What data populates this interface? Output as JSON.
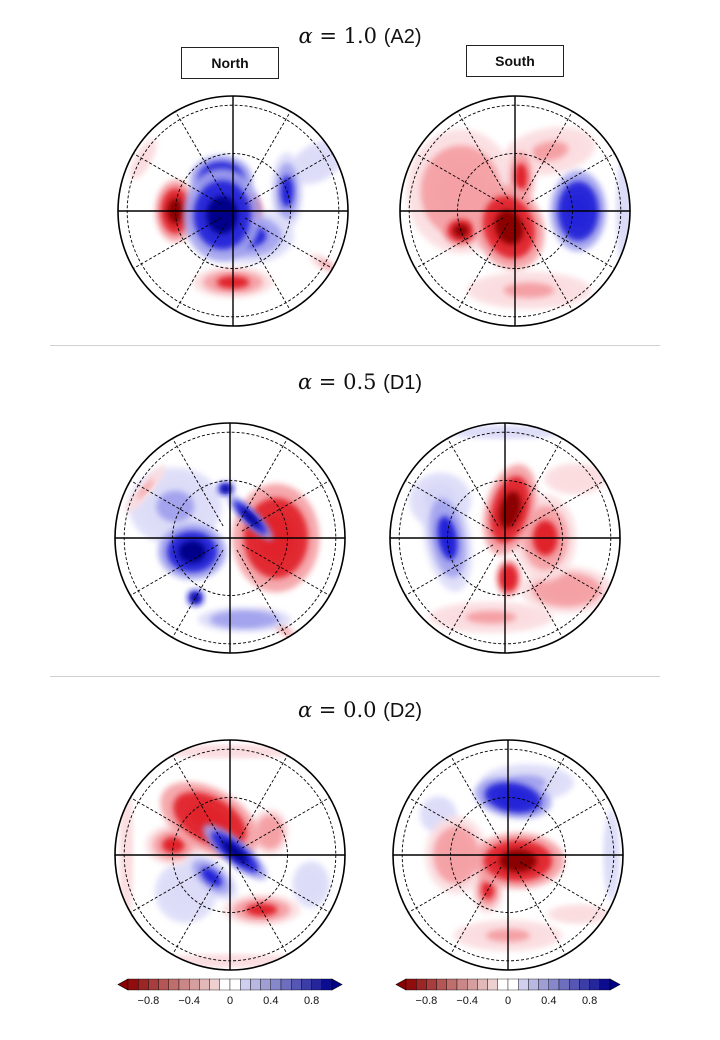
{
  "rows": [
    {
      "alpha_symbol": "α",
      "equals": " = ",
      "value": "1.0",
      "tag": "(A2)"
    },
    {
      "alpha_symbol": "α",
      "equals": " = ",
      "value": "0.5",
      "tag": "(D1)"
    },
    {
      "alpha_symbol": "α",
      "equals": " = ",
      "value": "0.0",
      "tag": "(D2)"
    }
  ],
  "hemispheres": {
    "north": "North",
    "south": "South"
  },
  "colors": {
    "red_strong": "#8b0000",
    "red_mid": "#e0242c",
    "red_light": "#f4a0a4",
    "red_faint": "#fbdde0",
    "blue_strong": "#00008b",
    "blue_mid": "#2323d8",
    "blue_light": "#a3a3ee",
    "blue_faint": "#dcdcf8"
  },
  "colorbar": {
    "tick_labels": [
      "−0.8",
      "−0.4",
      "0",
      "0.4",
      "0.8"
    ],
    "tick_values": [
      -0.8,
      -0.4,
      0,
      0.4,
      0.8
    ],
    "range": [
      -1,
      1
    ],
    "levels": [
      -1.0,
      -0.9,
      -0.8,
      -0.7,
      -0.6,
      -0.5,
      -0.4,
      -0.3,
      -0.2,
      -0.1,
      0,
      0.1,
      0.2,
      0.3,
      0.4,
      0.5,
      0.6,
      0.7,
      0.8,
      0.9,
      1.0
    ]
  },
  "panels": [
    {
      "id": "a2-north",
      "blobs": [
        {
          "v": 0.15,
          "ang": 30,
          "rr": 0.85,
          "rx": 0.2,
          "ry": 0.12,
          "rot": 30
        },
        {
          "v": -0.25,
          "ang": 150,
          "rr": 0.9,
          "rx": 0.15,
          "ry": 0.05,
          "rot": 60
        },
        {
          "v": 0.9,
          "ang": 200,
          "rr": 0.1,
          "rx": 0.25,
          "ry": 0.3,
          "rot": 0
        },
        {
          "v": 0.8,
          "ang": 110,
          "rr": 0.3,
          "rx": 0.2,
          "ry": 0.15,
          "rot": 0
        },
        {
          "v": 0.7,
          "ang": 300,
          "rr": 0.25,
          "rx": 0.3,
          "ry": 0.18,
          "rot": 0
        },
        {
          "v": 0.6,
          "ang": 20,
          "rr": 0.5,
          "rx": 0.1,
          "ry": 0.25,
          "rot": 0
        },
        {
          "v": -0.85,
          "ang": 180,
          "rr": 0.5,
          "rx": 0.13,
          "ry": 0.2,
          "rot": 0
        },
        {
          "v": -0.8,
          "ang": 10,
          "rr": 0.12,
          "rx": 0.1,
          "ry": 0.1,
          "rot": 0
        },
        {
          "v": -0.65,
          "ang": 270,
          "rr": 0.62,
          "rx": 0.26,
          "ry": 0.1,
          "rot": 0
        },
        {
          "v": -0.3,
          "ang": 330,
          "rr": 0.93,
          "rx": 0.12,
          "ry": 0.04,
          "rot": -30
        }
      ]
    },
    {
      "id": "a2-south",
      "blobs": [
        {
          "v": -0.4,
          "ang": 160,
          "rr": 0.5,
          "rx": 0.35,
          "ry": 0.4,
          "rot": 0
        },
        {
          "v": -0.35,
          "ang": 60,
          "rr": 0.6,
          "rx": 0.3,
          "ry": 0.15,
          "rot": 10
        },
        {
          "v": -0.3,
          "ang": 280,
          "rr": 0.7,
          "rx": 0.4,
          "ry": 0.12,
          "rot": 0
        },
        {
          "v": -0.9,
          "ang": 250,
          "rr": 0.15,
          "rx": 0.22,
          "ry": 0.28,
          "rot": 20
        },
        {
          "v": -0.85,
          "ang": 200,
          "rr": 0.5,
          "rx": 0.12,
          "ry": 0.1,
          "rot": 0
        },
        {
          "v": -0.7,
          "ang": 80,
          "rr": 0.3,
          "rx": 0.1,
          "ry": 0.22,
          "rot": 0
        },
        {
          "v": 0.75,
          "ang": 0,
          "rr": 0.55,
          "rx": 0.18,
          "ry": 0.26,
          "rot": 0
        },
        {
          "v": 0.2,
          "ang": 0,
          "rr": 0.95,
          "rx": 0.05,
          "ry": 0.4,
          "rot": 0
        },
        {
          "v": 0.3,
          "ang": 130,
          "rr": 0.35,
          "rx": 0.12,
          "ry": 0.08,
          "rot": 0
        }
      ]
    },
    {
      "id": "d1-north",
      "blobs": [
        {
          "v": 0.3,
          "ang": 150,
          "rr": 0.55,
          "rx": 0.3,
          "ry": 0.25,
          "rot": 0
        },
        {
          "v": 0.9,
          "ang": 200,
          "rr": 0.35,
          "rx": 0.22,
          "ry": 0.18,
          "rot": 0
        },
        {
          "v": 0.9,
          "ang": 45,
          "rr": 0.25,
          "rx": 0.05,
          "ry": 0.2,
          "rot": 45
        },
        {
          "v": 0.95,
          "ang": 95,
          "rr": 0.43,
          "rx": 0.06,
          "ry": 0.05,
          "rot": 0
        },
        {
          "v": 0.85,
          "ang": 240,
          "rr": 0.6,
          "rx": 0.06,
          "ry": 0.06,
          "rot": 0
        },
        {
          "v": 0.4,
          "ang": 280,
          "rr": 0.72,
          "rx": 0.3,
          "ry": 0.08,
          "rot": 0
        },
        {
          "v": -0.8,
          "ang": 0,
          "rr": 0.4,
          "rx": 0.28,
          "ry": 0.35,
          "rot": 0
        },
        {
          "v": -0.3,
          "ang": 150,
          "rr": 0.85,
          "rx": 0.2,
          "ry": 0.04,
          "rot": 50
        },
        {
          "v": -0.3,
          "ang": 300,
          "rr": 0.9,
          "rx": 0.2,
          "ry": 0.04,
          "rot": -40
        }
      ]
    },
    {
      "id": "d1-south",
      "blobs": [
        {
          "v": 0.7,
          "ang": 180,
          "rr": 0.5,
          "rx": 0.15,
          "ry": 0.35,
          "rot": 10
        },
        {
          "v": 0.35,
          "ang": 150,
          "rr": 0.65,
          "rx": 0.2,
          "ry": 0.18,
          "rot": 0
        },
        {
          "v": -0.95,
          "ang": 80,
          "rr": 0.25,
          "rx": 0.16,
          "ry": 0.3,
          "rot": -15
        },
        {
          "v": -0.6,
          "ang": 0,
          "rr": 0.35,
          "rx": 0.2,
          "ry": 0.28,
          "rot": 0
        },
        {
          "v": -0.8,
          "ang": 275,
          "rr": 0.35,
          "rx": 0.08,
          "ry": 0.12,
          "rot": 0
        },
        {
          "v": -0.4,
          "ang": 320,
          "rr": 0.7,
          "rx": 0.3,
          "ry": 0.15,
          "rot": 0
        },
        {
          "v": -0.3,
          "ang": 260,
          "rr": 0.7,
          "rx": 0.4,
          "ry": 0.1,
          "rot": 0
        },
        {
          "v": -0.25,
          "ang": 40,
          "rr": 0.8,
          "rx": 0.2,
          "ry": 0.1,
          "rot": 0
        },
        {
          "v": 0.2,
          "ang": 90,
          "rr": 0.92,
          "rx": 0.4,
          "ry": 0.04,
          "rot": 0
        }
      ]
    },
    {
      "id": "d2-north",
      "blobs": [
        {
          "v": -0.75,
          "ang": 120,
          "rr": 0.35,
          "rx": 0.35,
          "ry": 0.2,
          "rot": -30
        },
        {
          "v": -0.6,
          "ang": 170,
          "rr": 0.5,
          "rx": 0.18,
          "ry": 0.13,
          "rot": 0
        },
        {
          "v": -0.4,
          "ang": 30,
          "rr": 0.4,
          "rx": 0.12,
          "ry": 0.15,
          "rot": 0
        },
        {
          "v": -0.6,
          "ang": 300,
          "rr": 0.55,
          "rx": 0.25,
          "ry": 0.1,
          "rot": 0
        },
        {
          "v": -0.25,
          "ang": 90,
          "rr": 0.9,
          "rx": 0.5,
          "ry": 0.04,
          "rot": 0
        },
        {
          "v": -0.25,
          "ang": 270,
          "rr": 0.92,
          "rx": 0.5,
          "ry": 0.04,
          "rot": 0
        },
        {
          "v": -0.25,
          "ang": 180,
          "rr": 0.9,
          "rx": 0.04,
          "ry": 0.5,
          "rot": 0
        },
        {
          "v": 0.95,
          "ang": 30,
          "rr": 0.05,
          "rx": 0.26,
          "ry": 0.08,
          "rot": -40
        },
        {
          "v": 0.6,
          "ang": 230,
          "rr": 0.25,
          "rx": 0.2,
          "ry": 0.1,
          "rot": -40
        },
        {
          "v": 0.25,
          "ang": 220,
          "rr": 0.5,
          "rx": 0.2,
          "ry": 0.2,
          "rot": 0
        },
        {
          "v": 0.25,
          "ang": 340,
          "rr": 0.75,
          "rx": 0.12,
          "ry": 0.15,
          "rot": 0
        }
      ]
    },
    {
      "id": "d2-south",
      "blobs": [
        {
          "v": 0.8,
          "ang": 85,
          "rr": 0.5,
          "rx": 0.25,
          "ry": 0.13,
          "rot": -10
        },
        {
          "v": 0.3,
          "ang": 75,
          "rr": 0.65,
          "rx": 0.3,
          "ry": 0.12,
          "rot": 0
        },
        {
          "v": 0.2,
          "ang": 0,
          "rr": 0.9,
          "rx": 0.05,
          "ry": 0.3,
          "rot": 0
        },
        {
          "v": 0.2,
          "ang": 150,
          "rr": 0.7,
          "rx": 0.12,
          "ry": 0.12,
          "rot": 0
        },
        {
          "v": -0.85,
          "ang": 330,
          "rr": 0.1,
          "rx": 0.3,
          "ry": 0.18,
          "rot": 0
        },
        {
          "v": -0.7,
          "ang": 240,
          "rr": 0.35,
          "rx": 0.1,
          "ry": 0.15,
          "rot": 0
        },
        {
          "v": -0.45,
          "ang": 180,
          "rr": 0.45,
          "rx": 0.2,
          "ry": 0.25,
          "rot": 0
        },
        {
          "v": -0.35,
          "ang": 270,
          "rr": 0.7,
          "rx": 0.35,
          "ry": 0.1,
          "rot": 0
        },
        {
          "v": -0.25,
          "ang": 320,
          "rr": 0.8,
          "rx": 0.2,
          "ry": 0.06,
          "rot": 0
        }
      ]
    }
  ]
}
